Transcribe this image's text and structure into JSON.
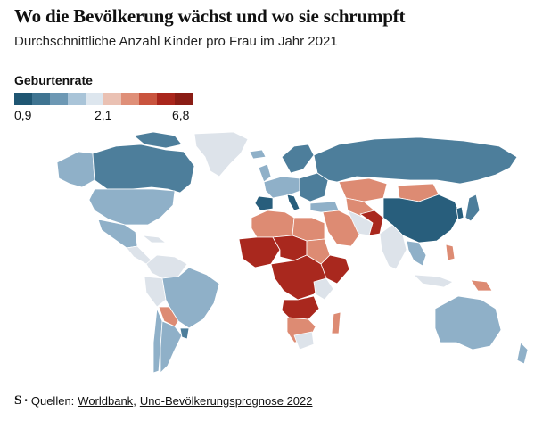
{
  "header": {
    "title": "Wo die Bevölkerung wächst und wo sie schrumpft",
    "subtitle": "Durchschnittliche Anzahl Kinder pro Frau im Jahr 2021"
  },
  "legend": {
    "title": "Geburtenrate",
    "min_label": "0,9",
    "mid_label": "2,1",
    "max_label": "6,8",
    "colors": [
      "#1f5672",
      "#3f7491",
      "#6d98b4",
      "#a9c4d8",
      "#dde6ee",
      "#eac1b3",
      "#df8f78",
      "#c9543e",
      "#a9261c",
      "#8a1d15"
    ]
  },
  "map": {
    "low_color": "#4d7e9b",
    "mid_low_color": "#8fb0c8",
    "neutral_color": "#dde3ea",
    "high_color": "#dd8b73",
    "very_high_color": "#a9281e",
    "land_dark_color": "#285e7c"
  },
  "footer": {
    "brand": "S",
    "prefix": "Quellen:",
    "source1": "Worldbank",
    "separator": ",",
    "source2": "Uno-Bevölkerungsprognose 2022"
  }
}
